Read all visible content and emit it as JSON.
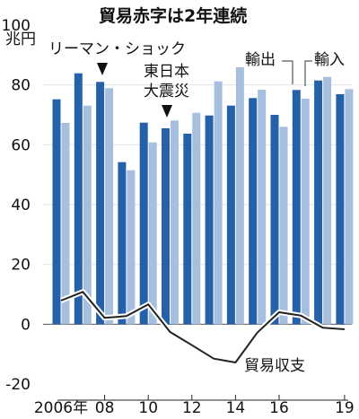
{
  "chart_data": {
    "type": "bar",
    "title": "貿易赤字は2年連続",
    "ylabel": "兆円",
    "ylim": [
      -20,
      100
    ],
    "yticks": [
      100,
      80,
      60,
      40,
      20,
      0,
      -20
    ],
    "xtick_labels": [
      "2006年",
      "08",
      "10",
      "12",
      "14",
      "16",
      "19"
    ],
    "categories": [
      "2006",
      "2007",
      "2008",
      "2009",
      "2010",
      "2011",
      "2012",
      "2013",
      "2014",
      "2015",
      "2016",
      "2017",
      "2018",
      "2019"
    ],
    "series": [
      {
        "name": "輸出",
        "type": "bar",
        "color": "#2461a8",
        "values": [
          75.2,
          83.9,
          81.0,
          54.2,
          67.4,
          65.5,
          63.7,
          69.8,
          73.1,
          75.6,
          70.0,
          78.3,
          81.5,
          76.9
        ]
      },
      {
        "name": "輸入",
        "type": "bar",
        "color": "#a7bfdf",
        "values": [
          67.3,
          73.1,
          78.9,
          51.5,
          60.8,
          68.1,
          70.7,
          81.2,
          85.9,
          78.4,
          66.0,
          75.4,
          82.7,
          78.6
        ]
      },
      {
        "name": "貿易収支",
        "type": "line",
        "color": "#222222",
        "values": [
          7.9,
          10.8,
          2.1,
          2.7,
          6.6,
          -2.6,
          -7.0,
          -11.5,
          -12.8,
          -2.8,
          4.0,
          2.9,
          -1.2,
          -1.7
        ]
      }
    ],
    "annotations": [
      {
        "text": "リーマン・ショック",
        "category": "2008"
      },
      {
        "lines": [
          "東日本",
          "大震災"
        ],
        "category": "2011"
      }
    ]
  }
}
